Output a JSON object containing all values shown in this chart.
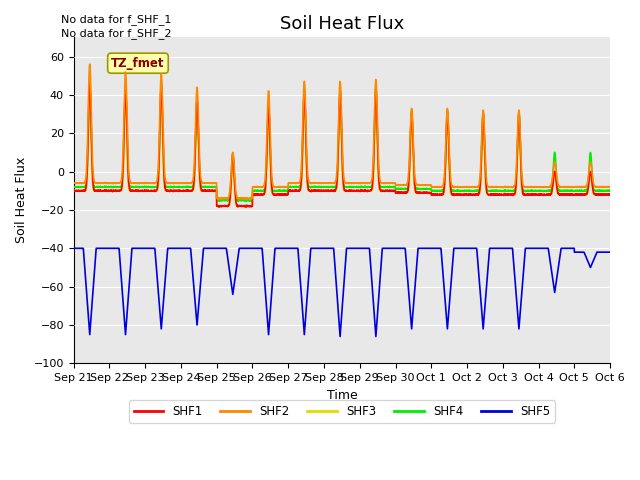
{
  "title": "Soil Heat Flux",
  "ylabel": "Soil Heat Flux",
  "xlabel": "Time",
  "xlabels": [
    "Sep 21",
    "Sep 22",
    "Sep 23",
    "Sep 24",
    "Sep 25",
    "Sep 26",
    "Sep 27",
    "Sep 28",
    "Sep 29",
    "Sep 30",
    "Oct 1",
    "Oct 2",
    "Oct 3",
    "Oct 4",
    "Oct 5",
    "Oct 6"
  ],
  "ylim": [
    -100,
    70
  ],
  "yticks": [
    -100,
    -80,
    -60,
    -40,
    -20,
    0,
    20,
    40,
    60
  ],
  "no_data_text1": "No data for f_SHF_1",
  "no_data_text2": "No data for f_SHF_2",
  "tz_label": "TZ_fmet",
  "colors": {
    "SHF1": "#ff0000",
    "SHF2": "#ff8800",
    "SHF3": "#dddd00",
    "SHF4": "#00ee00",
    "SHF5": "#0000dd"
  },
  "bg_color": "#e8e8e8",
  "title_fontsize": 13,
  "label_fontsize": 9,
  "tick_fontsize": 8
}
